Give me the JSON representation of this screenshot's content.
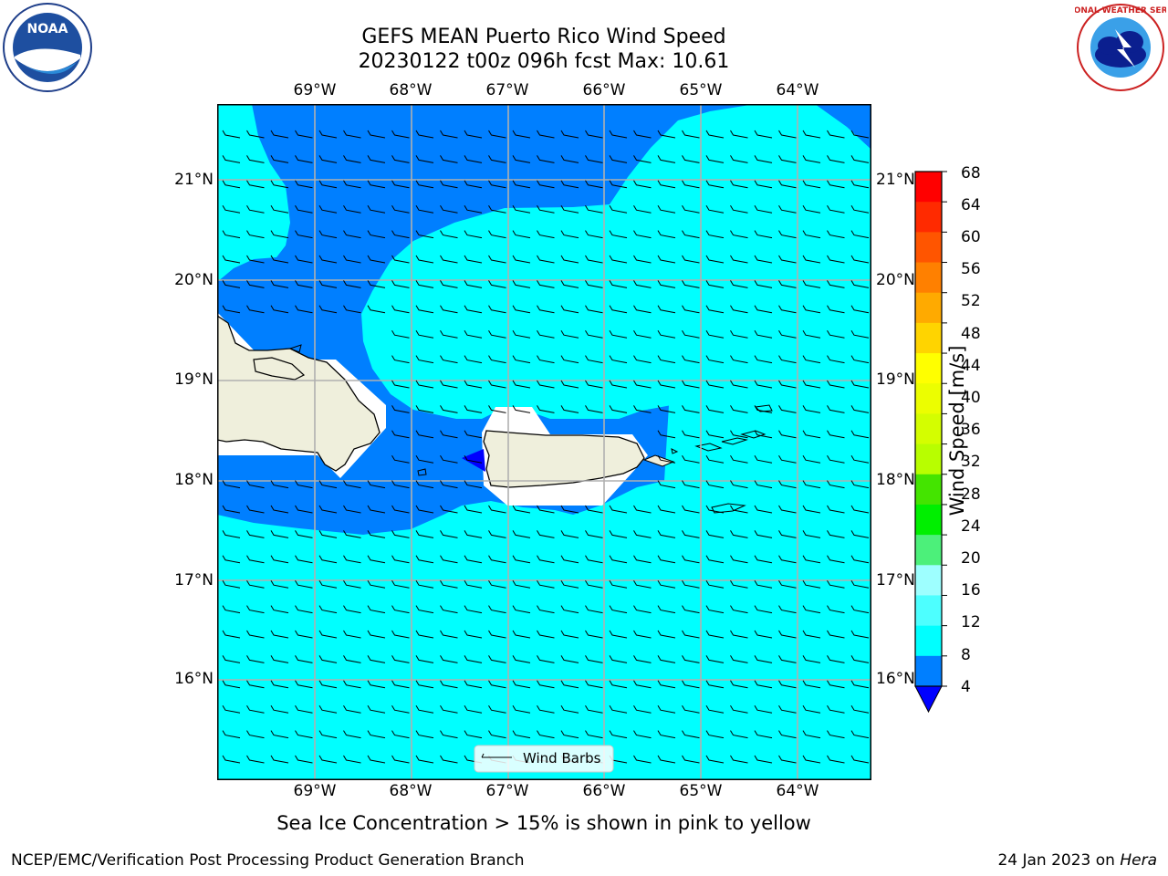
{
  "title": {
    "line1": "GEFS MEAN Puerto Rico Wind Speed",
    "line2": "20230122 t00z 096h fcst   Max: 10.61"
  },
  "map": {
    "lon_labels": [
      "69°W",
      "68°W",
      "67°W",
      "66°W",
      "65°W",
      "64°W"
    ],
    "lat_labels": [
      "21°N",
      "20°N",
      "19°N",
      "18°N",
      "17°N",
      "16°N"
    ],
    "legend_label": "Wind Barbs",
    "colors": {
      "ocean_light": "#00ffff",
      "ocean_mid": "#007fff",
      "ocean_dark": "#0000ff",
      "land": "#efefdc",
      "grid": "#b0b0b0"
    }
  },
  "colorbar": {
    "label": "Wind Speed [m/s]",
    "ticks": [
      "68",
      "64",
      "60",
      "56",
      "52",
      "48",
      "44",
      "40",
      "36",
      "32",
      "28",
      "24",
      "20",
      "16",
      "12",
      "8",
      "4"
    ],
    "colors": [
      "#ff0000",
      "#ff2a00",
      "#ff5500",
      "#ff8000",
      "#ffaa00",
      "#ffd400",
      "#ffff00",
      "#ecfe00",
      "#d4fe00",
      "#b8fe00",
      "#44e400",
      "#00ef00",
      "#4cf07a",
      "#9effff",
      "#4dffff",
      "#00ffff",
      "#007fff"
    ],
    "under_color": "#0000ff"
  },
  "note": "Sea Ice Concentration > 15% is shown in pink to yellow",
  "footer": {
    "left": "NCEP/EMC/Verification Post Processing Product Generation Branch",
    "right_prefix": "24 Jan 2023 on ",
    "right_machine": "Hera"
  },
  "logos": {
    "noaa_text": "NOAA",
    "nws_text": "NATIONAL WEATHER SERVICE"
  }
}
